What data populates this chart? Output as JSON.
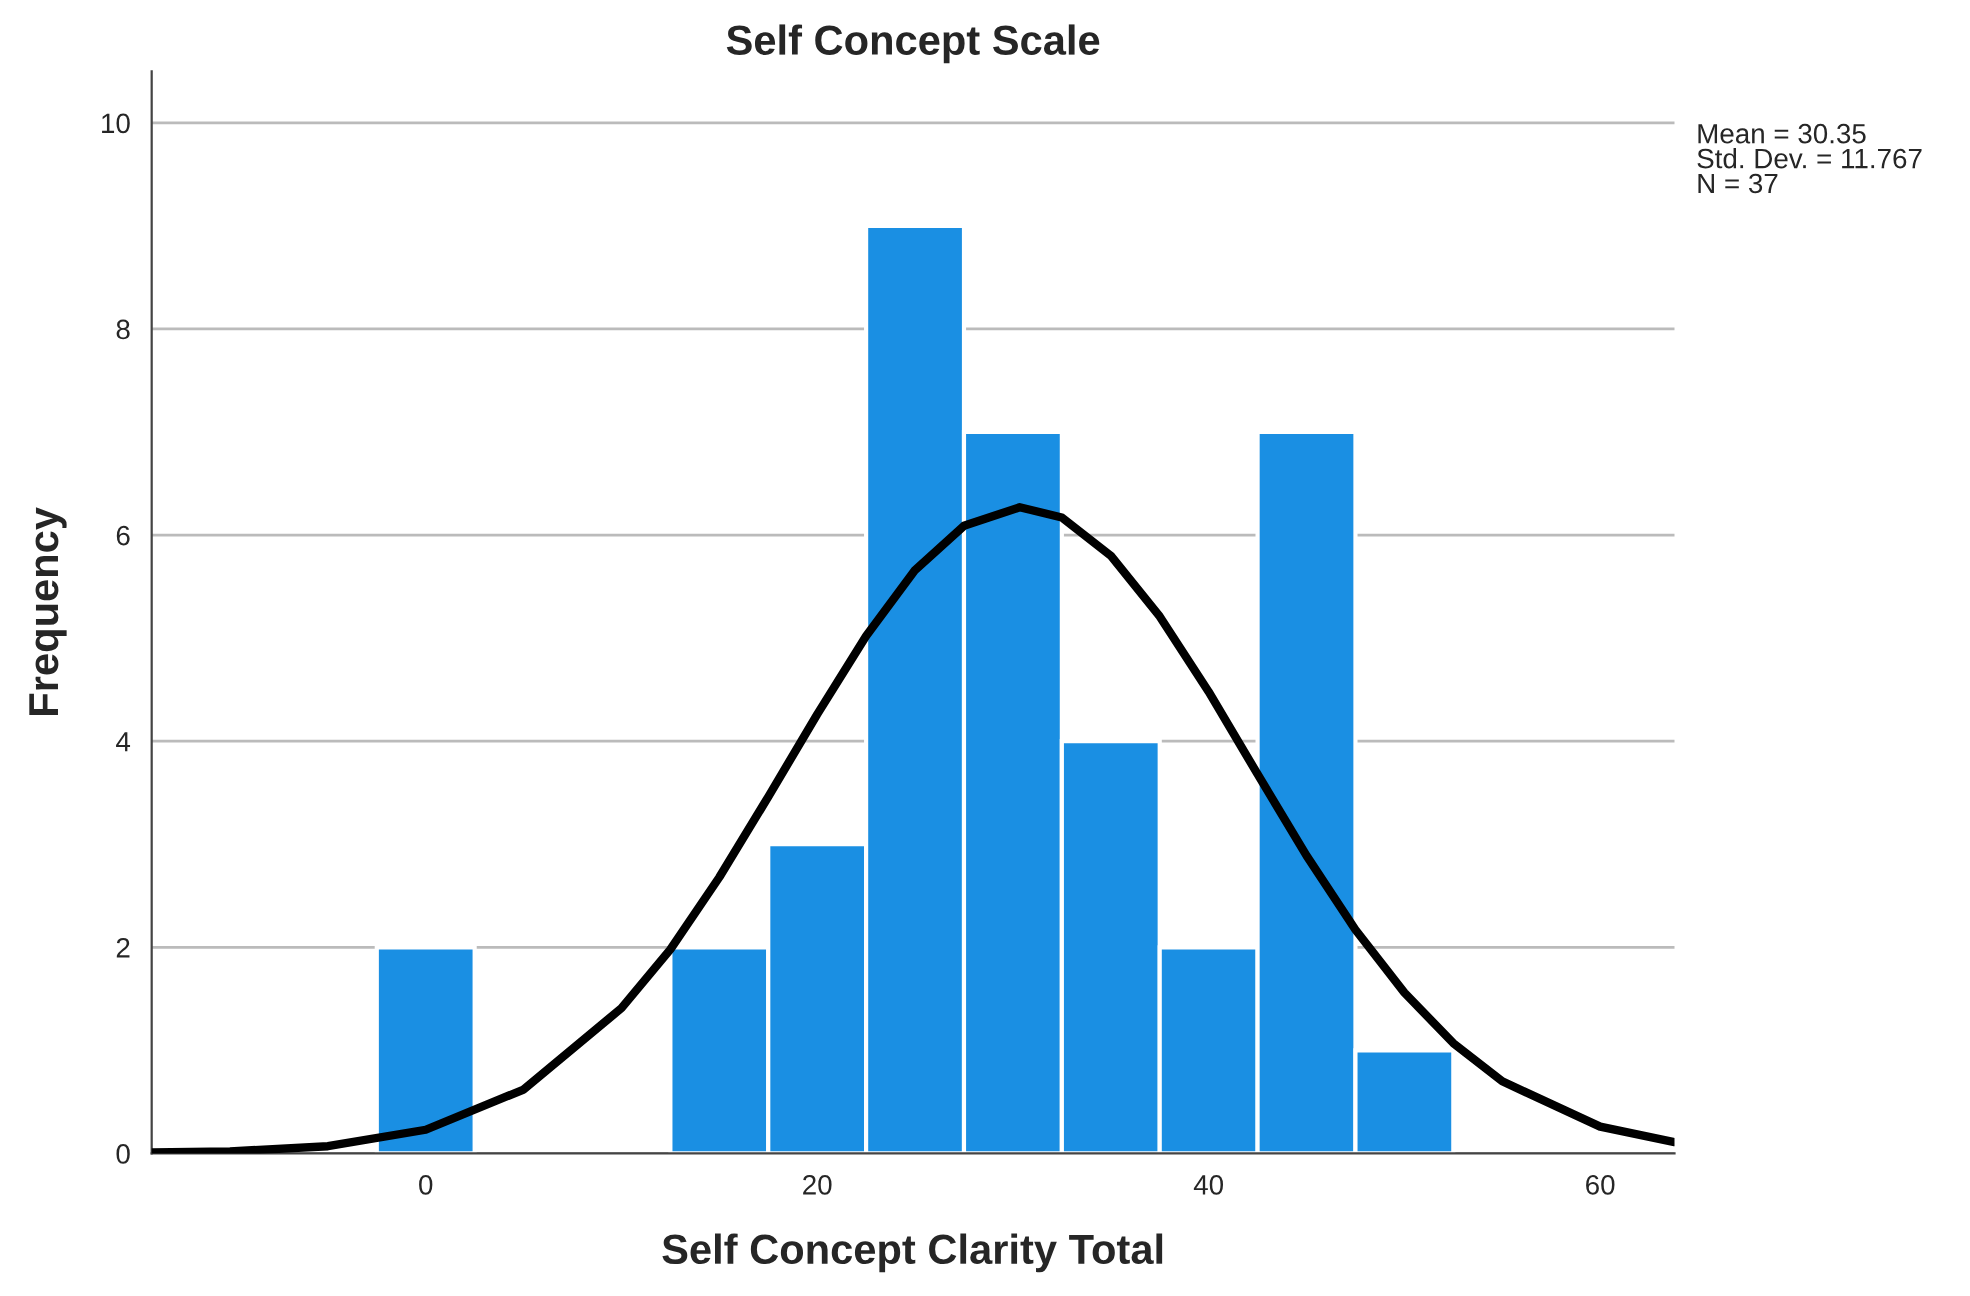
{
  "chart_data": {
    "type": "histogram",
    "title": "Self Concept Scale",
    "xlabel": "Self Concept Clarity Total",
    "ylabel": "Frequency",
    "series": [
      {
        "color": "#1a8fe3",
        "bins": [
          -2.5,
          2.5,
          7.5,
          12.5,
          17.5,
          22.5,
          27.5,
          32.5,
          37.5,
          42.5,
          47.5,
          52.5
        ],
        "values": [
          2,
          0,
          0,
          2,
          3,
          9,
          7,
          4,
          2,
          7,
          1
        ]
      },
      {
        "type": "line",
        "color": "#000000",
        "x": [
          -14,
          -10,
          -5,
          0,
          5,
          10,
          12.5,
          15,
          17.5,
          20,
          22.5,
          25,
          27.5,
          30.35,
          32.5,
          35,
          37.5,
          40,
          42.5,
          45,
          47.5,
          50,
          52.5,
          55,
          60,
          63.8
        ],
        "values": [
          0.01,
          0.02,
          0.07,
          0.23,
          0.62,
          1.41,
          1.98,
          2.68,
          3.46,
          4.26,
          5.02,
          5.66,
          6.09,
          6.27,
          6.17,
          5.8,
          5.21,
          4.48,
          3.68,
          2.89,
          2.17,
          1.56,
          1.07,
          0.7,
          0.26,
          0.11
        ]
      }
    ],
    "xlim": [
      -14,
      63.8
    ],
    "ylim": [
      0,
      10.5
    ],
    "xticks": [
      0,
      20,
      40,
      60
    ],
    "yticks": [
      0,
      2,
      4,
      6,
      8,
      10
    ],
    "grid": "y",
    "legend": false,
    "annotations": [
      "Mean = 30.35",
      "Std. Dev. = 11.767",
      "N = 37"
    ]
  }
}
